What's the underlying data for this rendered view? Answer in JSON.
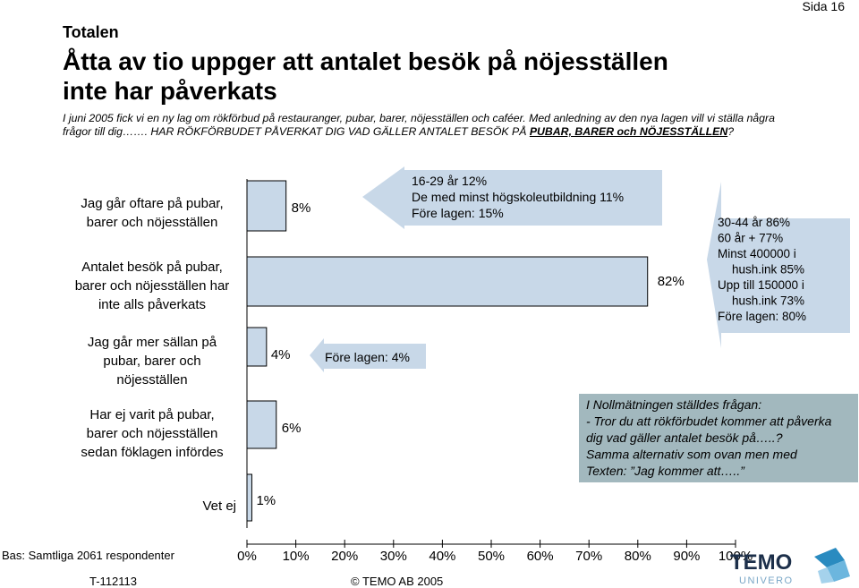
{
  "header": {
    "page_number": "Sida 16",
    "section": "Totalen",
    "headline_line1": "Åtta av tio uppger att antalet besök på nöjesställen",
    "headline_line2": "inte har påverkats",
    "intro_line1": "I juni 2005 fick vi en ny lag om rökförbud på restauranger, pubar, barer, nöjesställen och caféer. Med anledning av den nya lagen vill vi ställa några",
    "intro_line2_a": "frågor till dig……. HAR RÖKFÖRBUDET PÅVERKAT DIG VAD GÄLLER ANTALET BESÖK PÅ ",
    "intro_line2_b": "PUBAR, BARER och NÖJESSTÄLLEN",
    "intro_line2_c": "?"
  },
  "chart_data": {
    "type": "bar",
    "orientation": "horizontal",
    "categories": [
      [
        "Jag går oftare på pubar,",
        "barer och nöjesställen"
      ],
      [
        "Antalet besök på pubar,",
        "barer och nöjesställen har",
        "inte alls påverkats"
      ],
      [
        "Jag går mer sällan på",
        "pubar, barer och",
        "nöjesställen"
      ],
      [
        "Har ej varit på pubar,",
        "barer och nöjesställen",
        "sedan föklagen infördes"
      ],
      [
        "Vet ej"
      ]
    ],
    "values": [
      8,
      82,
      4,
      6,
      1
    ],
    "value_labels": [
      "8%",
      "82%",
      "4%",
      "6%",
      "1%"
    ],
    "xlim": [
      0,
      100
    ],
    "x_ticks": [
      "0%",
      "10%",
      "20%",
      "30%",
      "40%",
      "50%",
      "60%",
      "70%",
      "80%",
      "90%",
      "100%"
    ],
    "annotations": {
      "oftare": [
        "16-29 år  12%",
        "De med minst högskoleutbildning 11%",
        "Före  lagen: 15%"
      ],
      "inte_paverkats": [
        "30-44 år 86%",
        "60 år + 77%",
        "Minst 400000 i",
        "hush.ink 85%",
        "Upp till 150000 i",
        "hush.ink 73%",
        "Före lagen: 80%"
      ],
      "sallan": [
        "Före  lagen: 4%"
      ]
    },
    "note_box": [
      "I Nollmätningen ställdes frågan:",
      "- Tror du att rökförbudet kommer att påverka",
      "dig vad gäller antalet besök på…..?",
      "Samma alternativ som ovan men med",
      "Texten: ”Jag kommer att…..”"
    ],
    "colors": {
      "bar": "#c8d8e8",
      "arrow": "#c8d8e8",
      "note_box": "#a2b8be"
    }
  },
  "footer": {
    "base": "Bas: Samtliga 2061 respondenter",
    "report_id": "T-112113",
    "copyright": "©  TEMO AB 2005",
    "logo_main": "TEMO",
    "logo_sub": "UNIVERO"
  }
}
